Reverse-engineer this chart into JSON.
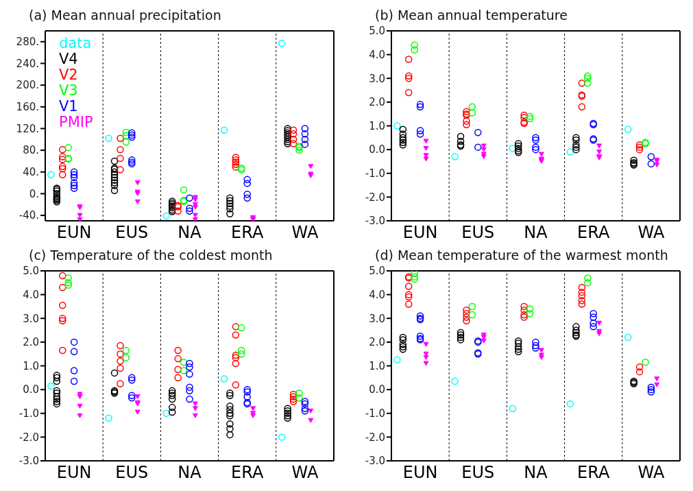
{
  "chart_data": [
    {
      "type": "scatter",
      "title": "(a) Mean annual precipitation",
      "legend": "top left",
      "grid": "x",
      "categories": [
        "EUN",
        "EUS",
        "NA",
        "ERA",
        "WA"
      ],
      "ylim": [
        -50,
        300
      ],
      "yticks": [
        {
          "value": -40,
          "label": "-40."
        },
        {
          "value": 0,
          "label": "0."
        },
        {
          "value": 40,
          "label": "40."
        },
        {
          "value": 80,
          "label": "80."
        },
        {
          "value": 120,
          "label": "120."
        },
        {
          "value": 160,
          "label": "160."
        },
        {
          "value": 200,
          "label": "200."
        },
        {
          "value": 240,
          "label": "240."
        },
        {
          "value": 280,
          "label": "280."
        }
      ],
      "series": [
        {
          "name": "data",
          "color": "#00ffff",
          "marker": "circle",
          "x": [
            "EUN",
            "EUS",
            "NA",
            "ERA",
            "WA"
          ],
          "values": [
            35,
            102,
            -41,
            117,
            277
          ]
        },
        {
          "name": "V4",
          "color": "#000000",
          "marker": "circle",
          "x": [
            "EUN",
            "EUN",
            "EUN",
            "EUN",
            "EUN",
            "EUN",
            "EUN",
            "EUN",
            "EUN",
            "EUS",
            "EUS",
            "EUS",
            "EUS",
            "EUS",
            "EUS",
            "EUS",
            "EUS",
            "EUS",
            "EUS",
            "NA",
            "NA",
            "NA",
            "NA",
            "NA",
            "NA",
            "NA",
            "ERA",
            "ERA",
            "ERA",
            "ERA",
            "ERA",
            "ERA",
            "WA",
            "WA",
            "WA",
            "WA",
            "WA",
            "WA",
            "WA",
            "WA"
          ],
          "values": [
            10,
            8,
            5,
            0,
            -5,
            -8,
            -10,
            -12,
            -15,
            60,
            47,
            45,
            40,
            35,
            30,
            25,
            20,
            15,
            6,
            -14,
            -17,
            -20,
            -23,
            -26,
            -30,
            -33,
            -8,
            -13,
            -18,
            -23,
            -28,
            -37,
            120,
            116,
            112,
            108,
            104,
            100,
            96,
            92
          ]
        },
        {
          "name": "V2",
          "color": "#ff0000",
          "marker": "circle",
          "x": [
            "EUN",
            "EUN",
            "EUN",
            "EUN",
            "EUN",
            "EUN",
            "EUS",
            "EUS",
            "EUS",
            "EUS",
            "NA",
            "NA",
            "NA",
            "ERA",
            "ERA",
            "ERA",
            "ERA",
            "ERA",
            "WA",
            "WA",
            "WA",
            "WA"
          ],
          "values": [
            81,
            68,
            63,
            50,
            46,
            35,
            102,
            81,
            65,
            44,
            -22,
            -24,
            -32,
            67,
            62,
            58,
            54,
            49,
            117,
            110,
            100,
            92
          ]
        },
        {
          "name": "V3",
          "color": "#00ff00",
          "marker": "circle",
          "x": [
            "EUN",
            "EUN",
            "EUN",
            "EUS",
            "EUS",
            "EUS",
            "NA",
            "NA",
            "NA",
            "ERA",
            "ERA",
            "WA",
            "WA",
            "WA"
          ],
          "values": [
            85,
            65,
            64,
            113,
            107,
            95,
            7,
            -12,
            -14,
            47,
            44,
            87,
            85,
            80
          ]
        },
        {
          "name": "V1",
          "color": "#0000ff",
          "marker": "circle",
          "x": [
            "EUN",
            "EUN",
            "EUN",
            "EUN",
            "EUN",
            "EUN",
            "EUS",
            "EUS",
            "EUS",
            "EUS",
            "EUS",
            "EUS",
            "NA",
            "NA",
            "NA",
            "ERA",
            "ERA",
            "ERA",
            "ERA",
            "WA",
            "WA",
            "WA",
            "WA"
          ],
          "values": [
            40,
            35,
            30,
            20,
            15,
            10,
            112,
            108,
            104,
            62,
            58,
            55,
            -8,
            -27,
            -32,
            26,
            19,
            -1,
            -8,
            120,
            110,
            100,
            91
          ]
        },
        {
          "name": "PMIP",
          "color": "#ff00ff",
          "marker": "triangle",
          "x": [
            "EUN",
            "EUN",
            "EUN",
            "EUN",
            "EUS",
            "EUS",
            "EUS",
            "EUS",
            "NA",
            "NA",
            "NA",
            "NA",
            "NA",
            "NA",
            "ERA",
            "ERA",
            "ERA",
            "WA",
            "WA",
            "WA"
          ],
          "values": [
            -24,
            -26,
            -40,
            -48,
            20,
            3,
            0,
            -15,
            -7,
            -11,
            -20,
            -25,
            -40,
            -48,
            -44,
            -46,
            -48,
            50,
            36,
            33
          ]
        }
      ]
    },
    {
      "type": "scatter",
      "title": "(b) Mean annual temperature",
      "grid": "x",
      "categories": [
        "EUN",
        "EUS",
        "NA",
        "ERA",
        "WA"
      ],
      "ylim": [
        -3,
        5
      ],
      "yticks": [
        {
          "value": -3,
          "label": "-3.0"
        },
        {
          "value": -2,
          "label": "-2.0"
        },
        {
          "value": -1,
          "label": "-1.0"
        },
        {
          "value": 0,
          "label": "0.0"
        },
        {
          "value": 1,
          "label": "1.0"
        },
        {
          "value": 2,
          "label": "2.0"
        },
        {
          "value": 3,
          "label": "3.0"
        },
        {
          "value": 4,
          "label": "4.0"
        },
        {
          "value": 5,
          "label": "5.0"
        }
      ],
      "series": [
        {
          "color": "#00ffff",
          "marker": "circle",
          "x": [
            "EUN",
            "EUS",
            "NA",
            "ERA",
            "WA"
          ],
          "values": [
            1.0,
            -0.3,
            0.05,
            -0.1,
            0.85
          ]
        },
        {
          "color": "#000000",
          "marker": "circle",
          "x": [
            "EUN",
            "EUN",
            "EUN",
            "EUN",
            "EUN",
            "EUN",
            "EUS",
            "EUS",
            "EUS",
            "EUS",
            "NA",
            "NA",
            "NA",
            "NA",
            "NA",
            "ERA",
            "ERA",
            "ERA",
            "ERA",
            "ERA",
            "WA",
            "WA",
            "WA",
            "WA"
          ],
          "values": [
            0.85,
            0.65,
            0.5,
            0.4,
            0.3,
            0.2,
            0.55,
            0.35,
            0.2,
            0.15,
            0.25,
            0.15,
            0.05,
            -0.05,
            -0.12,
            0.5,
            0.4,
            0.2,
            0.1,
            0.0,
            -0.45,
            -0.55,
            -0.6,
            -0.65
          ]
        },
        {
          "color": "#ff0000",
          "marker": "circle",
          "x": [
            "EUN",
            "EUN",
            "EUN",
            "EUN",
            "EUS",
            "EUS",
            "EUS",
            "EUS",
            "EUS",
            "NA",
            "NA",
            "NA",
            "NA",
            "ERA",
            "ERA",
            "ERA",
            "ERA",
            "WA",
            "WA",
            "WA"
          ],
          "values": [
            3.8,
            3.1,
            3.0,
            2.4,
            1.6,
            1.5,
            1.45,
            1.2,
            1.05,
            1.45,
            1.35,
            1.15,
            1.1,
            2.8,
            2.3,
            2.25,
            1.8,
            0.2,
            0.1,
            0.0
          ]
        },
        {
          "color": "#00ff00",
          "marker": "circle",
          "x": [
            "EUN",
            "EUN",
            "EUS",
            "EUS",
            "NA",
            "NA",
            "ERA",
            "ERA",
            "ERA",
            "WA",
            "WA"
          ],
          "values": [
            4.4,
            4.2,
            1.8,
            1.55,
            1.4,
            1.3,
            3.1,
            3.0,
            2.8,
            0.3,
            0.25
          ]
        },
        {
          "color": "#0000ff",
          "marker": "circle",
          "x": [
            "EUN",
            "EUN",
            "EUN",
            "EUN",
            "EUS",
            "EUS",
            "NA",
            "NA",
            "NA",
            "NA",
            "ERA",
            "ERA",
            "ERA",
            "ERA",
            "WA",
            "WA"
          ],
          "values": [
            1.9,
            1.8,
            0.8,
            0.65,
            0.72,
            0.1,
            0.5,
            0.4,
            0.1,
            0.0,
            1.1,
            1.05,
            0.45,
            0.4,
            -0.3,
            -0.6
          ]
        },
        {
          "color": "#ff00ff",
          "marker": "triangle",
          "x": [
            "EUN",
            "EUN",
            "EUN",
            "EUN",
            "EUS",
            "EUS",
            "EUS",
            "EUS",
            "NA",
            "NA",
            "NA",
            "NA",
            "ERA",
            "ERA",
            "ERA",
            "ERA",
            "WA",
            "WA",
            "WA"
          ],
          "values": [
            0.35,
            0.05,
            -0.25,
            -0.4,
            0.15,
            0.0,
            -0.2,
            -0.3,
            -0.2,
            -0.4,
            -0.45,
            -0.5,
            0.15,
            -0.1,
            -0.3,
            -0.35,
            -0.45,
            -0.5,
            -0.65
          ]
        }
      ]
    },
    {
      "type": "scatter",
      "title": "(c) Temperature of the coldest month",
      "grid": "x",
      "categories": [
        "EUN",
        "EUS",
        "NA",
        "ERA",
        "WA"
      ],
      "ylim": [
        -3,
        5
      ],
      "yticks": [
        {
          "value": -3,
          "label": "-3.0"
        },
        {
          "value": -2,
          "label": "-2.0"
        },
        {
          "value": -1,
          "label": "-1.0"
        },
        {
          "value": 0,
          "label": "0.0"
        },
        {
          "value": 1,
          "label": "1.0"
        },
        {
          "value": 2,
          "label": "2.0"
        },
        {
          "value": 3,
          "label": "3.0"
        },
        {
          "value": 4,
          "label": "4.0"
        },
        {
          "value": 5,
          "label": "5.0"
        }
      ],
      "series": [
        {
          "color": "#00ffff",
          "marker": "circle",
          "x": [
            "EUN",
            "EUS",
            "NA",
            "ERA",
            "WA"
          ],
          "values": [
            0.15,
            -1.2,
            -1.0,
            0.45,
            -2.0
          ]
        },
        {
          "color": "#000000",
          "marker": "circle",
          "x": [
            "EUN",
            "EUN",
            "EUN",
            "EUN",
            "EUN",
            "EUN",
            "EUN",
            "EUN",
            "EUN",
            "EUS",
            "EUS",
            "EUS",
            "EUS",
            "NA",
            "NA",
            "NA",
            "NA",
            "NA",
            "NA",
            "ERA",
            "ERA",
            "ERA",
            "ERA",
            "ERA",
            "ERA",
            "ERA",
            "ERA",
            "ERA",
            "WA",
            "WA",
            "WA",
            "WA",
            "WA"
          ],
          "values": [
            0.6,
            0.5,
            0.35,
            -0.05,
            -0.15,
            -0.3,
            -0.4,
            -0.5,
            -0.6,
            0.7,
            -0.05,
            -0.1,
            -0.15,
            -0.05,
            -0.15,
            -0.25,
            -0.4,
            -0.75,
            -0.95,
            -0.15,
            -0.25,
            -0.7,
            -0.85,
            -1.0,
            -1.1,
            -1.45,
            -1.65,
            -1.9,
            -0.8,
            -0.9,
            -1.0,
            -1.1,
            -1.2
          ]
        },
        {
          "color": "#ff0000",
          "marker": "circle",
          "x": [
            "EUN",
            "EUN",
            "EUN",
            "EUN",
            "EUN",
            "EUN",
            "EUS",
            "EUS",
            "EUS",
            "EUS",
            "EUS",
            "NA",
            "NA",
            "NA",
            "NA",
            "ERA",
            "ERA",
            "ERA",
            "ERA",
            "ERA",
            "ERA",
            "WA",
            "WA",
            "WA",
            "WA"
          ],
          "values": [
            4.8,
            4.3,
            3.55,
            3.0,
            2.9,
            1.65,
            1.85,
            1.5,
            1.2,
            0.9,
            0.25,
            1.65,
            1.3,
            0.85,
            0.5,
            2.65,
            2.3,
            1.45,
            1.35,
            1.1,
            0.2,
            -0.2,
            -0.3,
            -0.4,
            -0.5
          ]
        },
        {
          "color": "#00ff00",
          "marker": "circle",
          "x": [
            "EUN",
            "EUN",
            "EUN",
            "EUS",
            "EUS",
            "NA",
            "NA",
            "ERA",
            "ERA",
            "ERA",
            "WA",
            "WA"
          ],
          "values": [
            4.7,
            4.5,
            4.4,
            1.65,
            1.35,
            1.15,
            0.8,
            2.6,
            1.65,
            1.5,
            -0.15,
            -0.35
          ]
        },
        {
          "color": "#0000ff",
          "marker": "circle",
          "x": [
            "EUN",
            "EUN",
            "EUN",
            "EUN",
            "EUS",
            "EUS",
            "EUS",
            "EUS",
            "NA",
            "NA",
            "NA",
            "NA",
            "NA",
            "NA",
            "ERA",
            "ERA",
            "ERA",
            "ERA",
            "ERA",
            "WA",
            "WA",
            "WA",
            "WA"
          ],
          "values": [
            2.0,
            1.6,
            0.8,
            0.35,
            0.5,
            0.4,
            -0.25,
            -0.35,
            1.1,
            0.95,
            0.65,
            0.1,
            -0.05,
            -0.4,
            0.0,
            -0.1,
            -0.3,
            -0.55,
            -0.6,
            -0.5,
            -0.6,
            -0.8,
            -0.9
          ]
        },
        {
          "color": "#ff00ff",
          "marker": "triangle",
          "x": [
            "EUN",
            "EUN",
            "EUN",
            "EUN",
            "EUS",
            "EUS",
            "EUS",
            "EUS",
            "NA",
            "NA",
            "NA",
            "ERA",
            "ERA",
            "ERA",
            "WA",
            "WA"
          ],
          "values": [
            -0.2,
            -0.3,
            -0.7,
            -1.1,
            -0.3,
            -0.55,
            -0.6,
            -0.95,
            -0.6,
            -0.8,
            -1.1,
            -0.8,
            -1.0,
            -1.1,
            -0.9,
            -1.3
          ]
        }
      ]
    },
    {
      "type": "scatter",
      "title": "(d) Mean temperature of the warmest month",
      "grid": "x",
      "categories": [
        "EUN",
        "EUS",
        "NA",
        "ERA",
        "WA"
      ],
      "ylim": [
        -3,
        5
      ],
      "yticks": [
        {
          "value": -3,
          "label": "-3.0"
        },
        {
          "value": -2,
          "label": "-2.0"
        },
        {
          "value": -1,
          "label": "-1.0"
        },
        {
          "value": 0,
          "label": "0.0"
        },
        {
          "value": 1,
          "label": "1.0"
        },
        {
          "value": 2,
          "label": "2.0"
        },
        {
          "value": 3,
          "label": "3.0"
        },
        {
          "value": 4,
          "label": "4.0"
        },
        {
          "value": 5,
          "label": "5.0"
        }
      ],
      "series": [
        {
          "color": "#00ffff",
          "marker": "circle",
          "x": [
            "EUN",
            "EUS",
            "NA",
            "ERA",
            "WA"
          ],
          "values": [
            1.25,
            0.35,
            -0.8,
            -0.6,
            2.2
          ]
        },
        {
          "color": "#000000",
          "marker": "circle",
          "x": [
            "EUN",
            "EUN",
            "EUN",
            "EUN",
            "EUN",
            "EUS",
            "EUS",
            "EUS",
            "EUS",
            "NA",
            "NA",
            "NA",
            "NA",
            "NA",
            "ERA",
            "ERA",
            "ERA",
            "ERA",
            "ERA",
            "WA",
            "WA",
            "WA"
          ],
          "values": [
            2.2,
            2.1,
            1.9,
            1.8,
            1.7,
            2.4,
            2.3,
            2.2,
            2.1,
            2.05,
            1.95,
            1.8,
            1.7,
            1.6,
            2.65,
            2.5,
            2.4,
            2.3,
            2.25,
            0.35,
            0.3,
            0.25
          ]
        },
        {
          "color": "#ff0000",
          "marker": "circle",
          "x": [
            "EUN",
            "EUN",
            "EUN",
            "EUN",
            "EUN",
            "EUN",
            "EUS",
            "EUS",
            "EUS",
            "EUS",
            "NA",
            "NA",
            "NA",
            "NA",
            "ERA",
            "ERA",
            "ERA",
            "ERA",
            "ERA",
            "WA",
            "WA"
          ],
          "values": [
            4.75,
            4.7,
            4.35,
            4.0,
            3.9,
            3.6,
            3.35,
            3.2,
            3.05,
            2.9,
            3.5,
            3.35,
            3.15,
            3.05,
            4.3,
            4.1,
            3.95,
            3.75,
            3.6,
            0.95,
            0.75
          ]
        },
        {
          "color": "#00ff00",
          "marker": "circle",
          "x": [
            "EUN",
            "EUN",
            "EUN",
            "EUS",
            "EUS",
            "NA",
            "NA",
            "ERA",
            "ERA",
            "WA"
          ],
          "values": [
            4.9,
            4.75,
            4.65,
            3.5,
            3.15,
            3.4,
            3.2,
            4.7,
            4.5,
            1.15
          ]
        },
        {
          "color": "#0000ff",
          "marker": "circle",
          "x": [
            "EUN",
            "EUN",
            "EUN",
            "EUN",
            "EUN",
            "EUN",
            "EUS",
            "EUS",
            "EUS",
            "EUS",
            "NA",
            "NA",
            "NA",
            "ERA",
            "ERA",
            "ERA",
            "ERA",
            "WA",
            "WA",
            "WA"
          ],
          "values": [
            3.1,
            3.0,
            2.95,
            2.25,
            2.15,
            2.1,
            2.05,
            2.0,
            1.55,
            1.5,
            2.0,
            1.85,
            1.75,
            3.2,
            3.05,
            2.8,
            2.65,
            0.1,
            0.0,
            -0.1
          ]
        },
        {
          "color": "#ff00ff",
          "marker": "triangle",
          "x": [
            "EUN",
            "EUN",
            "EUN",
            "EUN",
            "EUS",
            "EUS",
            "EUS",
            "NA",
            "NA",
            "NA",
            "ERA",
            "ERA",
            "ERA",
            "WA",
            "WA"
          ],
          "values": [
            1.9,
            1.5,
            1.35,
            1.1,
            2.3,
            2.2,
            2.05,
            1.65,
            1.45,
            1.35,
            2.8,
            2.45,
            2.35,
            0.45,
            0.2
          ]
        }
      ]
    }
  ]
}
